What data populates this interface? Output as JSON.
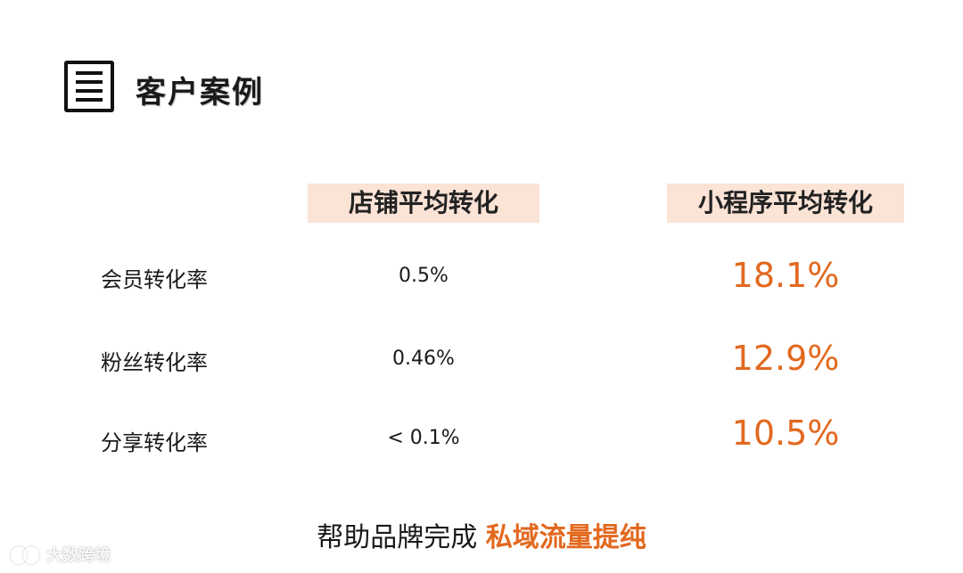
{
  "title": "客户案例",
  "icon": "document-list-icon",
  "accent_color": "#e2691f",
  "header_bg_color": "#fbe3d6",
  "columns": [
    "店铺平均转化",
    "小程序平均转化"
  ],
  "rows": [
    {
      "label": "会员转化率",
      "store": "0.5%",
      "mini": "18.1%"
    },
    {
      "label": "粉丝转化率",
      "store": "0.46%",
      "mini": "12.9%"
    },
    {
      "label": "分享转化率",
      "store": "< 0.1%",
      "mini": "10.5%"
    }
  ],
  "footer": {
    "prefix": "帮助品牌完成 ",
    "highlight": "私域流量提纯"
  },
  "watermark": "大数跨境"
}
